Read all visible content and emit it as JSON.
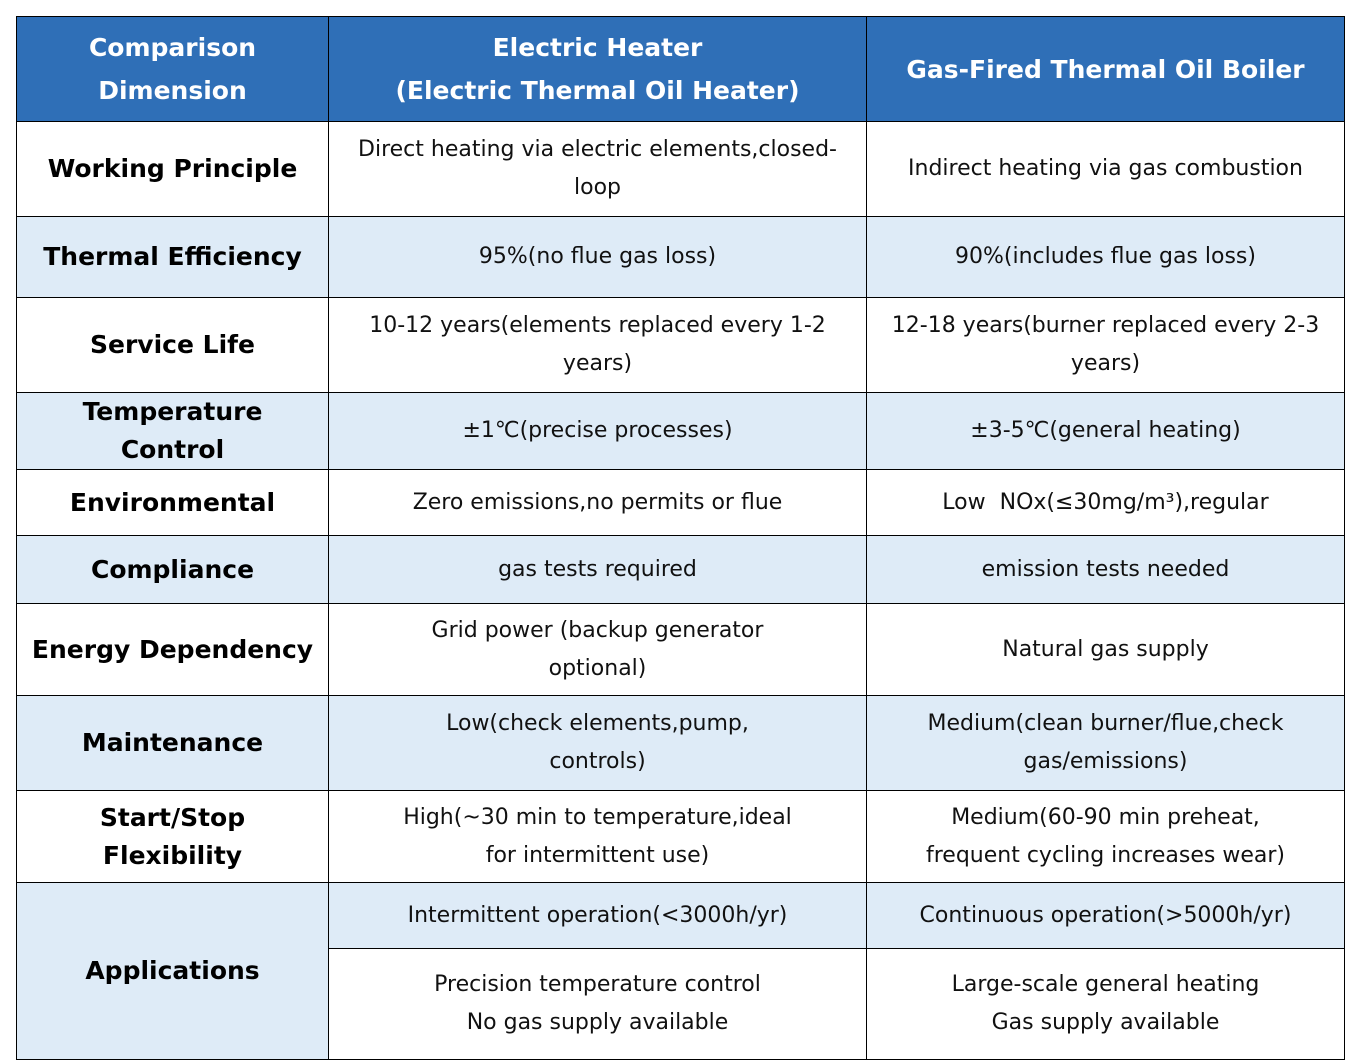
{
  "header": {
    "dimension": [
      "Comparison",
      "Dimension"
    ],
    "electric": [
      "Electric Heater",
      "(Electric Thermal Oil Heater)"
    ],
    "gas": "Gas-Fired Thermal Oil Boiler"
  },
  "rows": [
    {
      "dimension": "Working Principle",
      "electric": [
        "Direct heating via electric elements,closed-",
        "loop"
      ],
      "gas": [
        "Indirect heating via gas combustion"
      ]
    },
    {
      "dimension": "Thermal Efficiency",
      "electric": [
        "95%(no flue gas loss)"
      ],
      "gas": [
        "90%(includes flue gas loss)"
      ]
    },
    {
      "dimension": "Service Life",
      "electric": [
        "10-12 years(elements replaced every 1-2",
        "years)"
      ],
      "gas": [
        "12-18 years(burner replaced every 2-3",
        "years)"
      ]
    },
    {
      "dimension": "Temperature Control",
      "electric": [
        "±1℃(precise processes)"
      ],
      "gas": [
        "±3-5℃(general heating)"
      ]
    },
    {
      "dimension": "Environmental",
      "electric": [
        "Zero emissions,no permits or flue"
      ],
      "gas": [
        "Low  NOx(≤30mg/m³),regular"
      ]
    },
    {
      "dimension": "Compliance",
      "electric": [
        "gas tests required"
      ],
      "gas": [
        "emission tests needed"
      ]
    },
    {
      "dimension": "Energy Dependency",
      "electric": [
        "Grid power (backup generator",
        "optional)"
      ],
      "gas": [
        "Natural gas supply"
      ]
    },
    {
      "dimension": "Maintenance",
      "electric": [
        "Low(check elements,pump,",
        "controls)"
      ],
      "gas": [
        "Medium(clean burner/flue,check",
        "gas/emissions)"
      ]
    },
    {
      "dimension": "Start/Stop Flexibility",
      "electric": [
        "High(~30 min to temperature,ideal",
        "for intermittent use)"
      ],
      "gas": [
        "Medium(60-90 min preheat,",
        "frequent cycling increases wear)"
      ]
    }
  ],
  "applications": {
    "dimension": "Applications",
    "electric": [
      [
        "Intermittent operation(<3000h/yr)"
      ],
      [
        "Precision temperature control",
        "No gas supply available"
      ]
    ],
    "gas": [
      [
        "Continuous operation(>5000h/yr)"
      ],
      [
        "Large-scale general heating",
        "Gas supply available"
      ]
    ]
  }
}
